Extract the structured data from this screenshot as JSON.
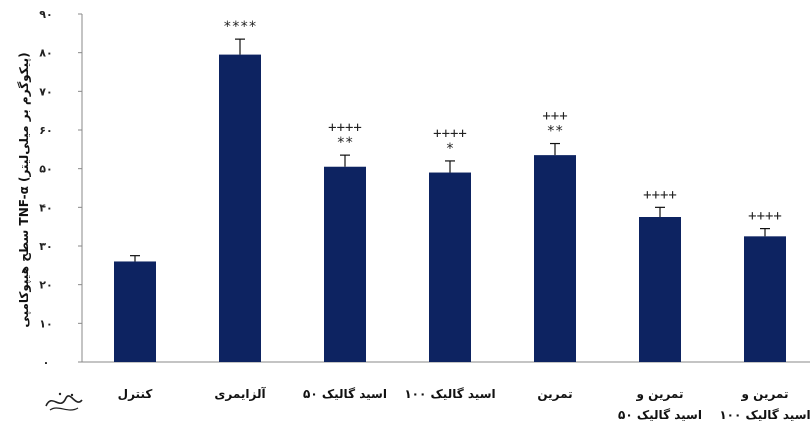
{
  "chart_data": {
    "type": "bar",
    "title": "",
    "xlabel": "",
    "ylabel": "سطح هیپوکامپی TNF-α (پیکوگرم بر میلی‌لیتر)",
    "ylim": [
      0,
      90
    ],
    "y_tick_labels": [
      "۰",
      "۱۰",
      "۲۰",
      "۳۰",
      "۴۰",
      "۵۰",
      "۶۰",
      "۷۰",
      "۸۰",
      "۹۰"
    ],
    "grid": false,
    "colors": {
      "bar": "#0d2361",
      "axis": "#888888"
    },
    "categories": [
      {
        "lines": [
          "کنترل"
        ]
      },
      {
        "lines": [
          "آلزایمری"
        ]
      },
      {
        "lines": [
          "اسید گالیک ۵۰"
        ]
      },
      {
        "lines": [
          "اسید گالیک ۱۰۰"
        ]
      },
      {
        "lines": [
          "تمرین"
        ]
      },
      {
        "lines": [
          "تمرین و",
          "اسید گالیک ۵۰"
        ]
      },
      {
        "lines": [
          "تمرین و",
          "اسید گالیک ۱۰۰"
        ]
      }
    ],
    "values": [
      26,
      79.5,
      50.5,
      49,
      53.5,
      37.5,
      32.5
    ],
    "errors": [
      1.5,
      4,
      3,
      3,
      3,
      2.5,
      2
    ],
    "annotations": [
      [],
      [
        "****"
      ],
      [
        "++++",
        "**"
      ],
      [
        "++++",
        "*"
      ],
      [
        "+++",
        "**"
      ],
      [
        "++++"
      ],
      [
        "++++"
      ]
    ]
  }
}
